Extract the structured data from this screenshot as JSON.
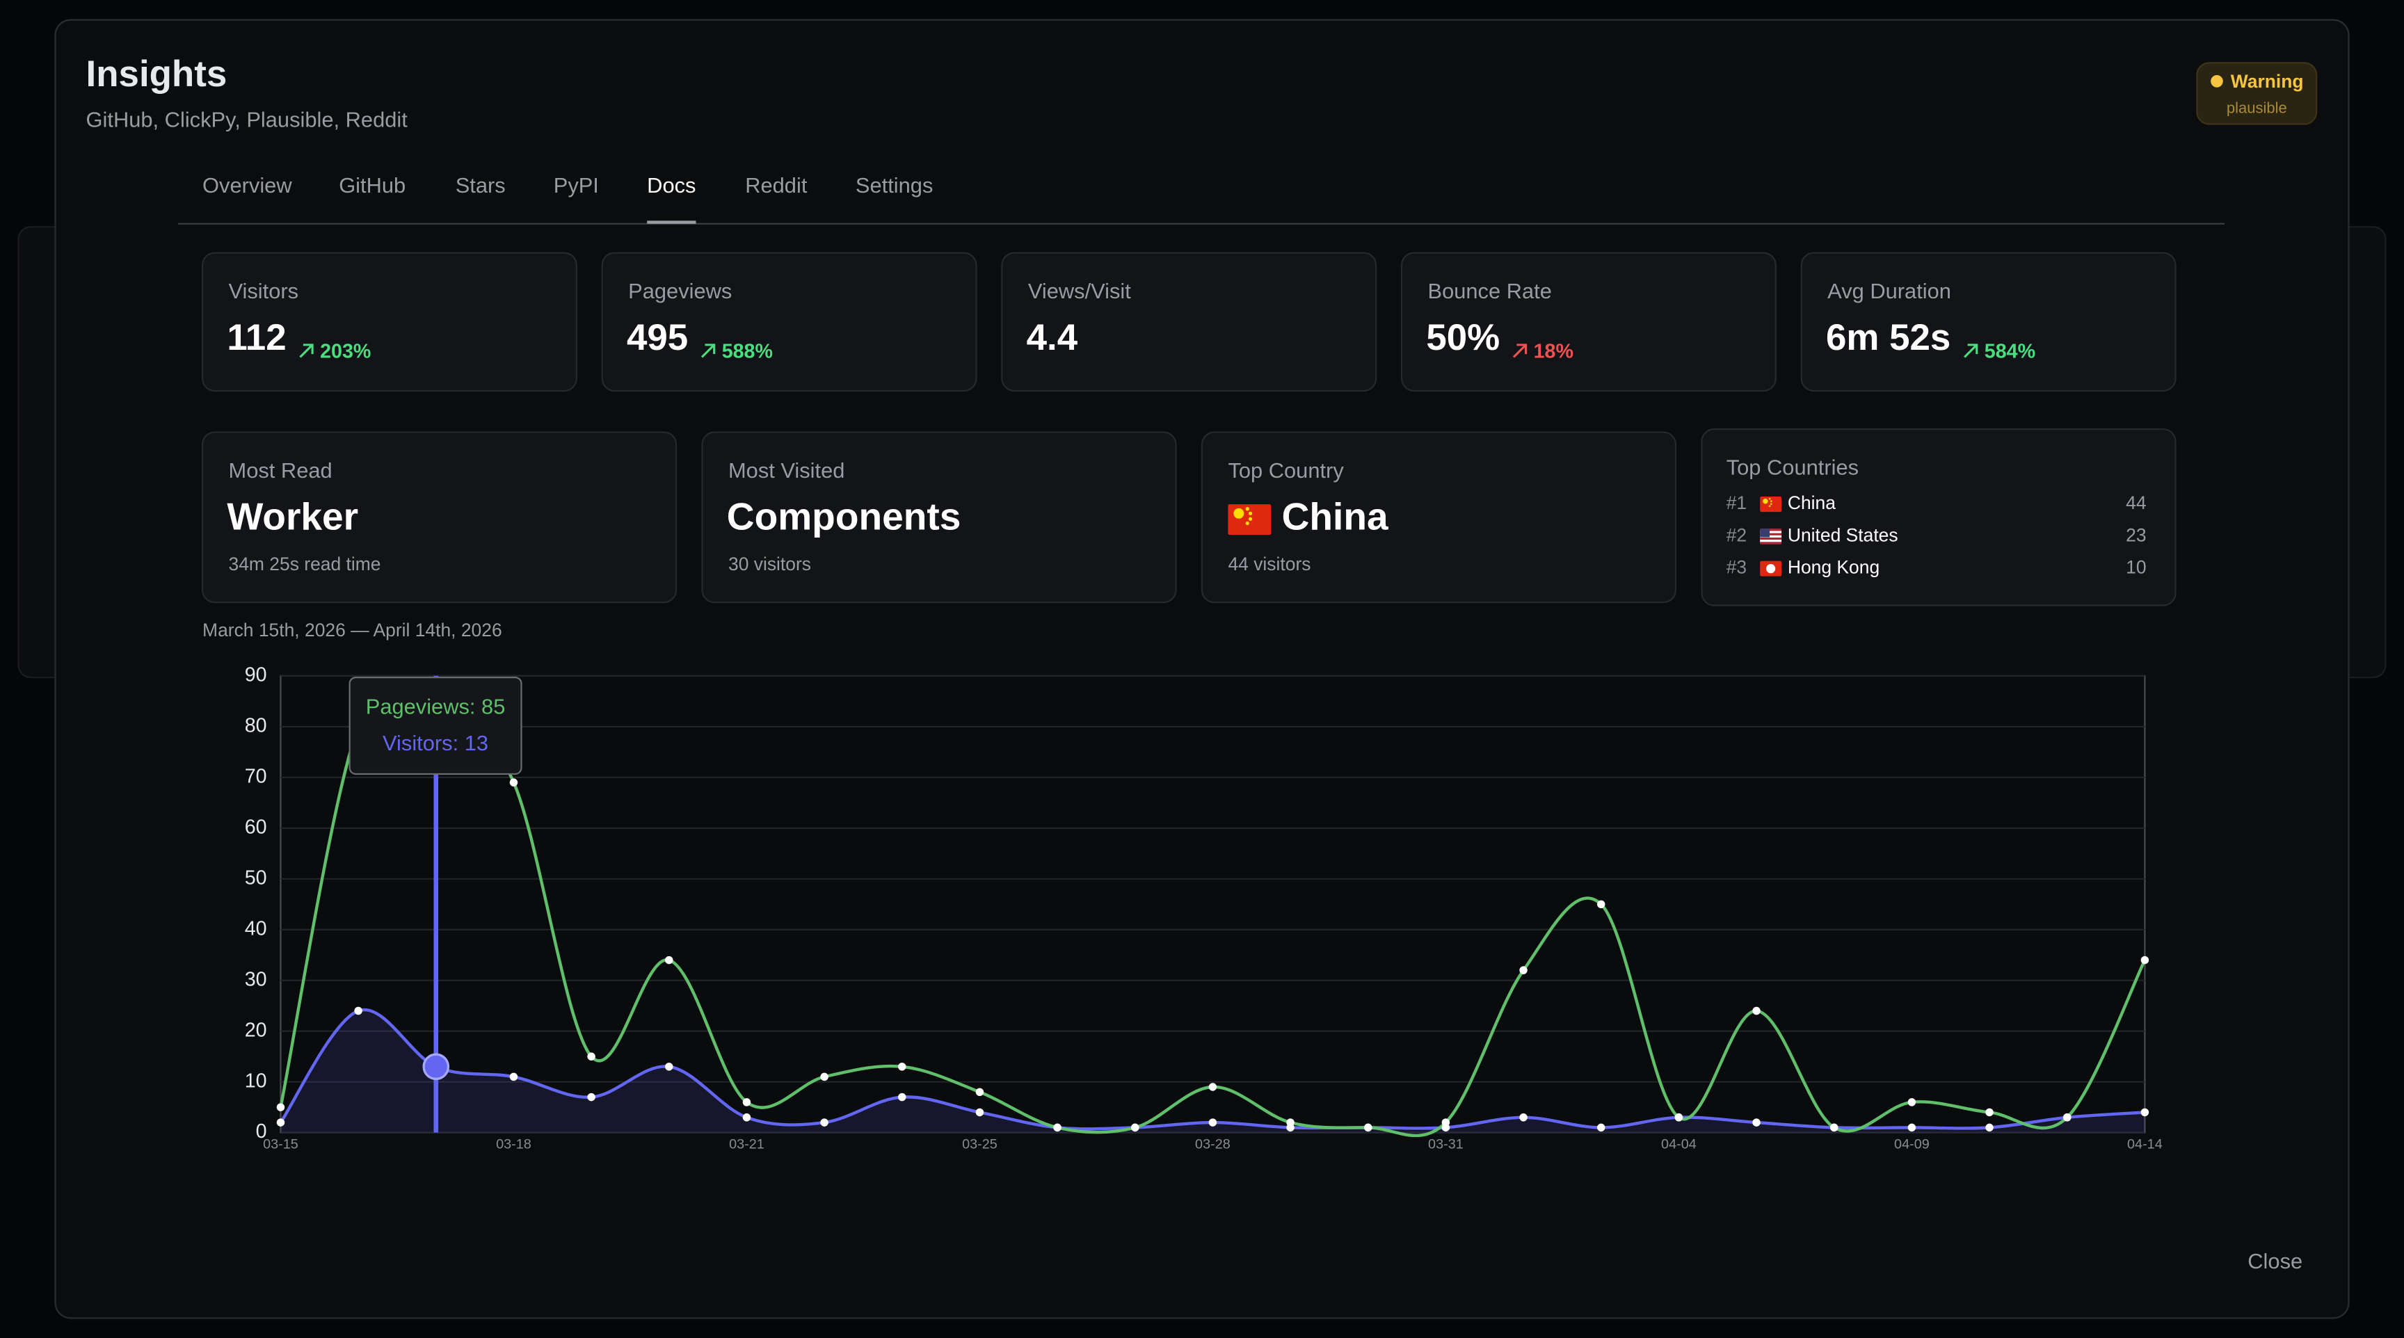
{
  "header": {
    "title": "Insights",
    "subtitle": "GitHub, ClickPy, Plausible, Reddit"
  },
  "status": {
    "label": "Warning",
    "source": "plausible"
  },
  "tabs": [
    "Overview",
    "GitHub",
    "Stars",
    "PyPI",
    "Docs",
    "Reddit",
    "Settings"
  ],
  "stats": [
    {
      "label": "Visitors",
      "value": "112",
      "change": "203%",
      "color": "#4ade80"
    },
    {
      "label": "Pageviews",
      "value": "495",
      "change": "588%",
      "color": "#4ade80"
    },
    {
      "label": "Views/Visit",
      "value": "4.4"
    },
    {
      "label": "Bounce Rate",
      "value": "50%",
      "change": "18%",
      "color": "#f05252"
    },
    {
      "label": "Avg Duration",
      "value": "6m 52s",
      "change": "584%",
      "color": "#4ade80"
    }
  ],
  "highlights": [
    {
      "label": "Most Read",
      "value": "Worker",
      "detail": "34m 25s read time"
    },
    {
      "label": "Most Visited",
      "value": "Components",
      "detail": "30 visitors"
    },
    {
      "label": "Top Country",
      "value": "China",
      "detail": "44 visitors"
    }
  ],
  "top_countries": {
    "title": "Top Countries",
    "rows": [
      {
        "rank": "#1",
        "name": "China",
        "count": 44
      },
      {
        "rank": "#2",
        "name": "United States",
        "count": 23
      },
      {
        "rank": "#3",
        "name": "Hong Kong",
        "count": 10
      }
    ]
  },
  "date_range": "March 15th, 2026 — April 14th, 2026",
  "chart_data": {
    "type": "line",
    "categories": [
      "03-15",
      null,
      null,
      "03-18",
      null,
      null,
      "03-21",
      null,
      null,
      "03-25",
      null,
      null,
      "03-28",
      null,
      null,
      "03-31",
      null,
      null,
      "04-04",
      null,
      null,
      "04-09",
      null,
      null,
      "04-14"
    ],
    "series": [
      {
        "color": "#5fbf6a",
        "values": [
          5,
          80,
          85,
          69,
          15,
          34,
          6,
          11,
          13,
          8,
          1,
          1,
          9,
          2,
          1,
          2,
          32,
          45,
          3,
          24,
          1,
          6,
          4,
          3,
          34
        ]
      },
      {
        "color": "#6366f1",
        "values": [
          2,
          24,
          13,
          11,
          7,
          13,
          3,
          2,
          7,
          4,
          1,
          1,
          2,
          1,
          1,
          1,
          3,
          1,
          3,
          2,
          1,
          1,
          1,
          3,
          4
        ]
      }
    ],
    "ylim": [
      0,
      90
    ],
    "yticks": [
      0,
      10,
      20,
      30,
      40,
      50,
      60,
      70,
      80,
      90
    ],
    "grid": true,
    "tooltip": [
      "Pageviews: 85",
      "Visitors: 13"
    ]
  },
  "close": "Close"
}
